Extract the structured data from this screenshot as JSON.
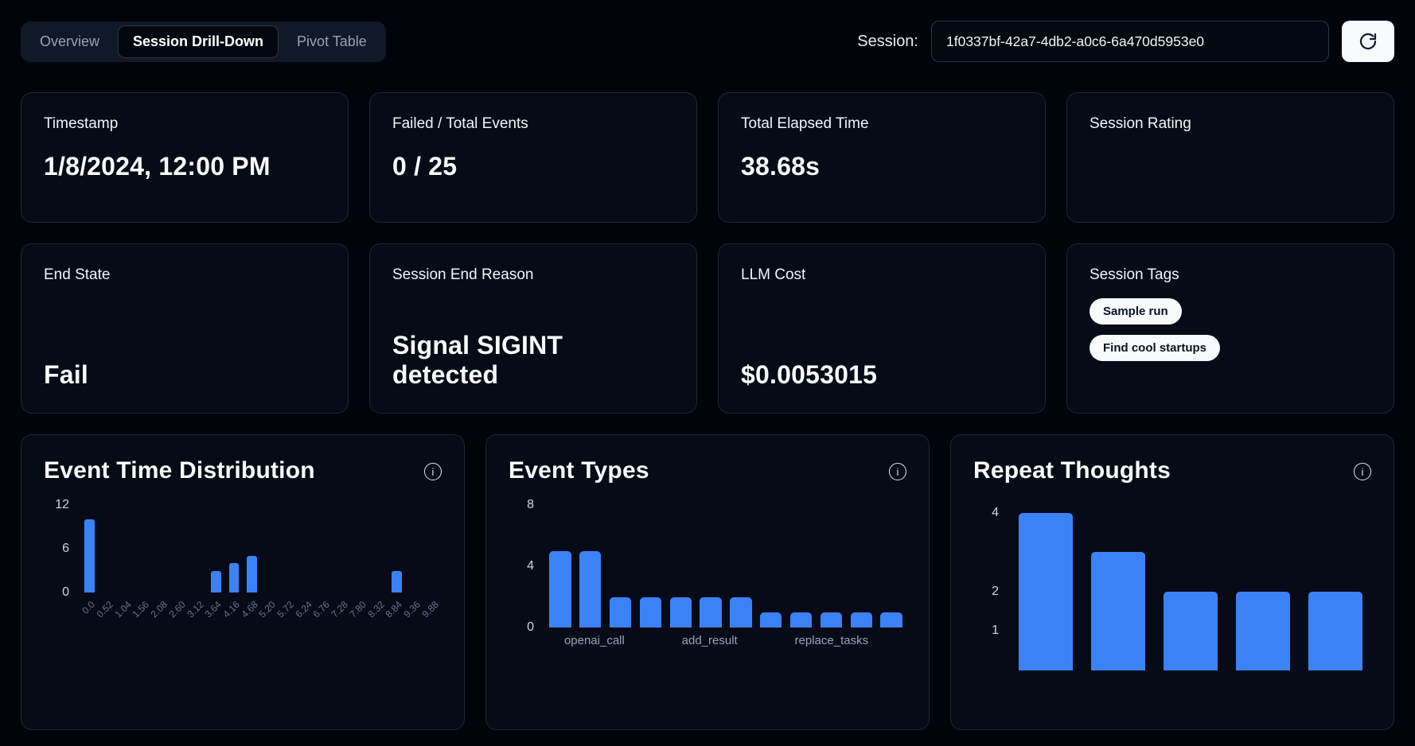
{
  "theme": {
    "background": "#01040b",
    "card_background": "#060b17",
    "card_border": "#1d2738",
    "accent_blue": "#3b82f6",
    "text_primary": "#f8fafc",
    "text_muted": "#94a3b8"
  },
  "icons": {
    "info": "i"
  },
  "tabs": [
    {
      "label": "Overview",
      "active": false
    },
    {
      "label": "Session Drill-Down",
      "active": true
    },
    {
      "label": "Pivot Table",
      "active": false
    }
  ],
  "session": {
    "label": "Session:",
    "value": "1f0337bf-42a7-4db2-a0c6-6a470d5953e0"
  },
  "stat_cards": [
    {
      "title": "Timestamp",
      "value": "1/8/2024, 12:00 PM"
    },
    {
      "title": "Failed / Total Events",
      "value": "0 / 25"
    },
    {
      "title": "Total Elapsed Time",
      "value": "38.68s"
    },
    {
      "title": "Session Rating",
      "value": ""
    },
    {
      "title": "End State",
      "value": "Fail"
    },
    {
      "title": "Session End Reason",
      "value": "Signal SIGINT detected"
    },
    {
      "title": "LLM Cost",
      "value": "$0.0053015"
    },
    {
      "title": "Session Tags",
      "value": "",
      "tags": [
        "Sample run",
        "Find cool startups"
      ]
    }
  ],
  "chart_data": [
    {
      "type": "bar",
      "title": "Event Time Distribution",
      "xlabel": "",
      "ylabel": "",
      "ylim": [
        0,
        12
      ],
      "yticks": [
        0,
        6,
        12
      ],
      "grid": false,
      "legend": false,
      "x_label_rotation": -45,
      "categories": [
        "0.0",
        "0.52",
        "1.04",
        "1.56",
        "2.08",
        "2.60",
        "3.12",
        "3.64",
        "4.16",
        "4.68",
        "5.20",
        "5.72",
        "6.24",
        "6.76",
        "7.28",
        "7.80",
        "8.32",
        "8.84",
        "9.36",
        "9.88"
      ],
      "values": [
        10,
        0,
        0,
        0,
        0,
        0,
        0,
        3,
        4,
        5,
        0,
        0,
        0,
        0,
        0,
        0,
        0,
        3,
        0,
        0
      ],
      "bar_color": "#3b82f6"
    },
    {
      "type": "bar",
      "title": "Event Types",
      "xlabel": "",
      "ylabel": "",
      "ylim": [
        0,
        8
      ],
      "yticks": [
        0,
        4,
        8
      ],
      "grid": false,
      "legend": false,
      "categories": [
        "",
        "openai_call",
        "",
        "",
        "",
        "add_result",
        "",
        "",
        "",
        "replace_tasks",
        "",
        ""
      ],
      "values": [
        5,
        5,
        2,
        2,
        2,
        2,
        2,
        1,
        1,
        1,
        1,
        1
      ],
      "bar_color": "#3b82f6"
    },
    {
      "type": "bar",
      "title": "Repeat Thoughts",
      "xlabel": "",
      "ylabel": "",
      "ylim": [
        0,
        4.2
      ],
      "yticks": [
        1,
        2,
        4
      ],
      "grid": false,
      "legend": false,
      "categories": [
        "",
        "",
        "",
        "",
        ""
      ],
      "values": [
        4,
        3,
        2,
        2,
        2
      ],
      "bar_color": "#3b82f6"
    }
  ]
}
